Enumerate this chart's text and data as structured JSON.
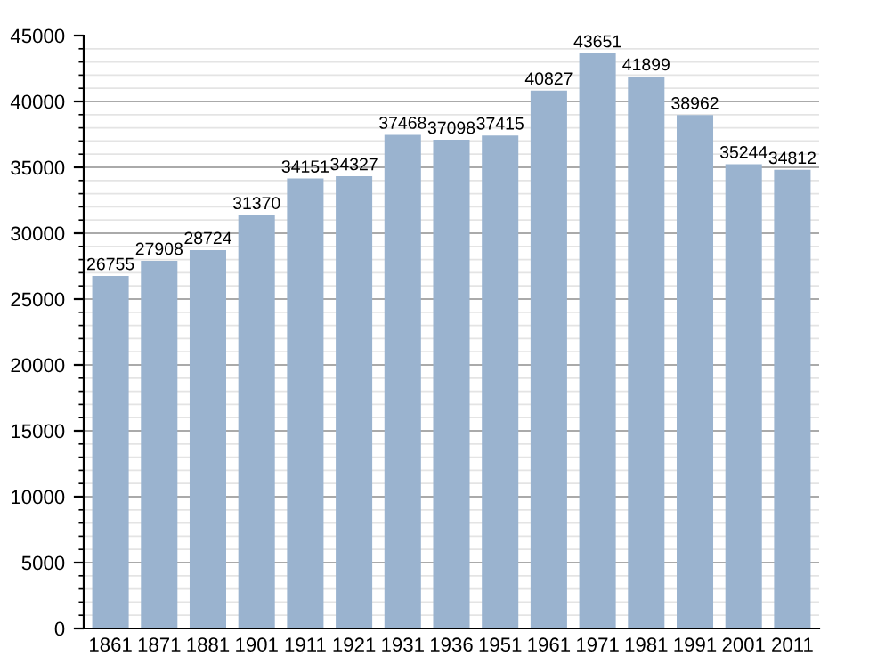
{
  "chart_data": {
    "type": "bar",
    "categories": [
      "1861",
      "1871",
      "1881",
      "1901",
      "1911",
      "1921",
      "1931",
      "1936",
      "1951",
      "1961",
      "1971",
      "1981",
      "1991",
      "2001",
      "2011"
    ],
    "values": [
      26755,
      27908,
      28724,
      31370,
      34151,
      34327,
      37468,
      37098,
      37415,
      40827,
      43651,
      41899,
      38962,
      35244,
      34812
    ],
    "color": "#9ab3cf",
    "ylim": [
      0,
      45000
    ],
    "yticks": [
      0,
      5000,
      10000,
      15000,
      20000,
      25000,
      30000,
      35000,
      40000,
      45000
    ],
    "grid": "y",
    "data_labels": true
  }
}
